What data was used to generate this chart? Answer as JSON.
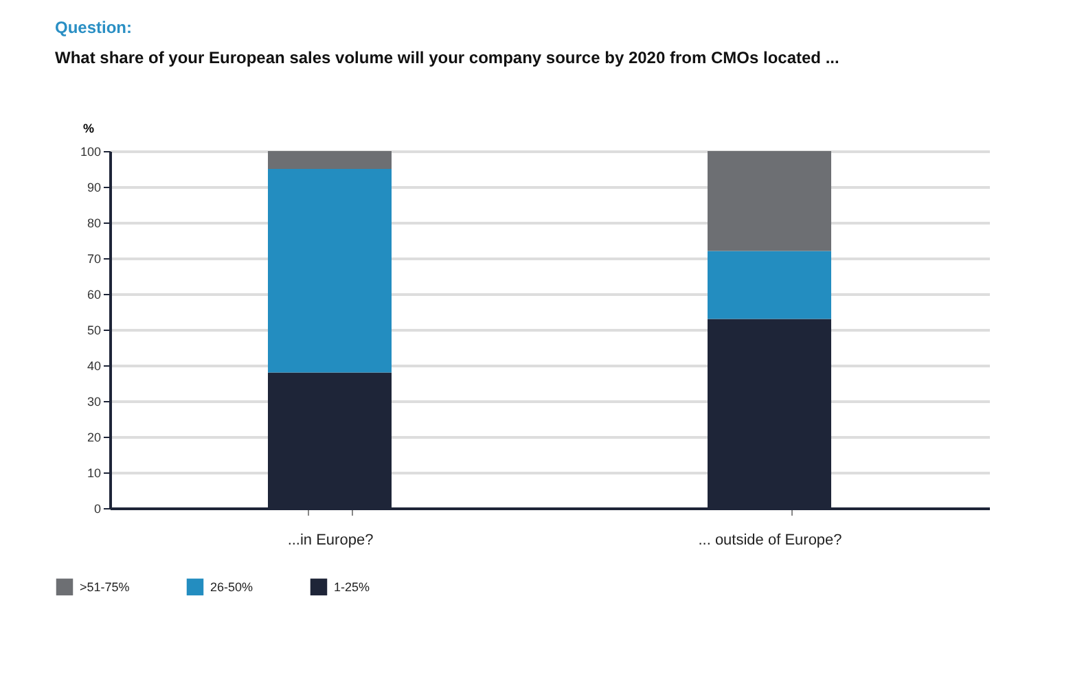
{
  "chart_data": {
    "type": "bar",
    "title": "Question:",
    "subtitle": "What share of your European sales volume will your company source by 2020 from CMOs located ...",
    "ylabel": "%",
    "categories": [
      "...in Europe?",
      "... outside of Europe?"
    ],
    "series": [
      {
        "name": "1-25%",
        "color": "#1e2538",
        "values": [
          38,
          53
        ]
      },
      {
        "name": "26-50%",
        "color": "#238dc0",
        "values": [
          57,
          19
        ]
      },
      {
        "name": ">51-75%",
        "color": "#6d6f73",
        "values": [
          5,
          28
        ]
      }
    ],
    "stacked": true,
    "ylim": [
      0,
      100
    ],
    "yticks": [
      0,
      10,
      20,
      30,
      40,
      50,
      60,
      70,
      80,
      90,
      100
    ],
    "grid": "y",
    "legend": "bottom left"
  }
}
